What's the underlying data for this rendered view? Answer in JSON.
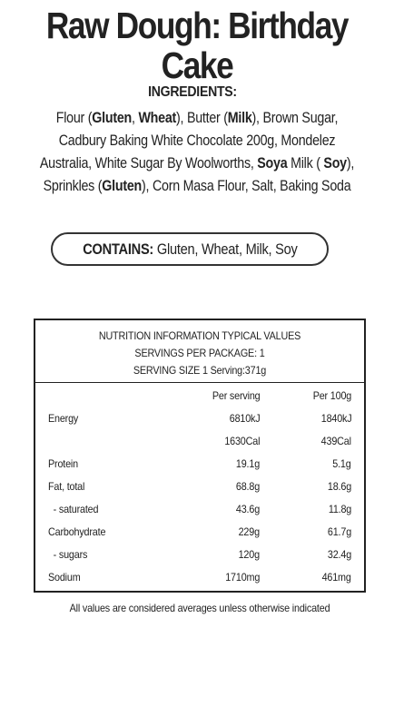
{
  "product": {
    "title_line1": "Raw Dough: Birthday",
    "title_line2": "Cake"
  },
  "ingredients": {
    "heading": "INGREDIENTS:",
    "lines": [
      [
        {
          "t": "Flour (",
          "b": false
        },
        {
          "t": "Gluten",
          "b": true
        },
        {
          "t": ", ",
          "b": false
        },
        {
          "t": "Wheat",
          "b": true
        },
        {
          "t": "), Butter (",
          "b": false
        },
        {
          "t": "Milk",
          "b": true
        },
        {
          "t": "), Brown Sugar,",
          "b": false
        }
      ],
      [
        {
          "t": "Cadbury Baking White Chocolate 200g, Mondelez",
          "b": false
        }
      ],
      [
        {
          "t": "Australia, White Sugar By Woolworths, ",
          "b": false
        },
        {
          "t": "Soya",
          "b": true
        },
        {
          "t": " Milk ( ",
          "b": false
        },
        {
          "t": "Soy",
          "b": true
        },
        {
          "t": "),",
          "b": false
        }
      ],
      [
        {
          "t": "Sprinkles (",
          "b": false
        },
        {
          "t": "Gluten",
          "b": true
        },
        {
          "t": "), Corn Masa Flour, Salt, Baking Soda",
          "b": false
        }
      ]
    ]
  },
  "contains": {
    "label": "CONTAINS:",
    "allergens": "Gluten, Wheat, Milk, Soy"
  },
  "nutrition": {
    "header_line1": "NUTRITION INFORMATION TYPICAL VALUES",
    "header_line2": "SERVINGS PER PACKAGE: 1",
    "header_line3": "SERVING SIZE 1 Serving:371g",
    "col_per_serving": "Per serving",
    "col_per_100g": "Per 100g",
    "rows": [
      {
        "label": "Energy",
        "per_serving": "6810kJ",
        "per_100g": "1840kJ"
      },
      {
        "label": "",
        "per_serving": "1630Cal",
        "per_100g": "439Cal"
      },
      {
        "label": "Protein",
        "per_serving": "19.1g",
        "per_100g": "5.1g"
      },
      {
        "label": "Fat, total",
        "per_serving": "68.8g",
        "per_100g": "18.6g"
      },
      {
        "label": "  - saturated",
        "per_serving": "43.6g",
        "per_100g": "11.8g"
      },
      {
        "label": "Carbohydrate",
        "per_serving": "229g",
        "per_100g": "61.7g"
      },
      {
        "label": "  - sugars",
        "per_serving": "120g",
        "per_100g": "32.4g"
      },
      {
        "label": "Sodium",
        "per_serving": "1710mg",
        "per_100g": "461mg"
      }
    ]
  },
  "footnote": "All values are considered averages unless otherwise indicated"
}
